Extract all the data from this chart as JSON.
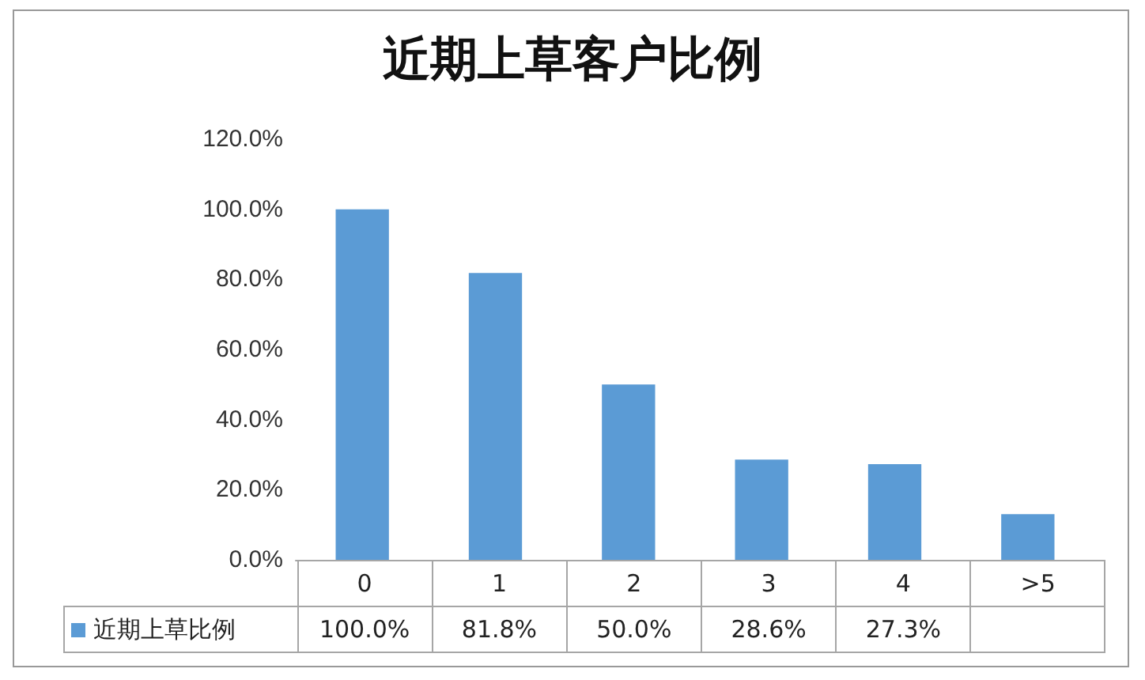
{
  "chart_data": {
    "type": "bar",
    "title": "近期上草客户比例",
    "categories": [
      "0",
      "1",
      "2",
      "3",
      "4",
      ">5"
    ],
    "series": [
      {
        "name": "近期上草比例",
        "color": "#5b9bd5",
        "values": [
          100.0,
          81.8,
          50.0,
          28.6,
          27.3,
          13
        ]
      }
    ],
    "value_labels": [
      "100.0%",
      "81.8%",
      "50.0%",
      "28.6%",
      "27.3%",
      null
    ],
    "ylim": [
      0,
      120
    ],
    "yticks": [
      {
        "value": 0,
        "label": "0.0%"
      },
      {
        "value": 20,
        "label": "20.0%"
      },
      {
        "value": 40,
        "label": "40.0%"
      },
      {
        "value": 60,
        "label": "60.0%"
      },
      {
        "value": 80,
        "label": "80.0%"
      },
      {
        "value": 100,
        "label": "100.0%"
      },
      {
        "value": 120,
        "label": "120.0%"
      }
    ],
    "grid": false,
    "legend": "bottom"
  }
}
